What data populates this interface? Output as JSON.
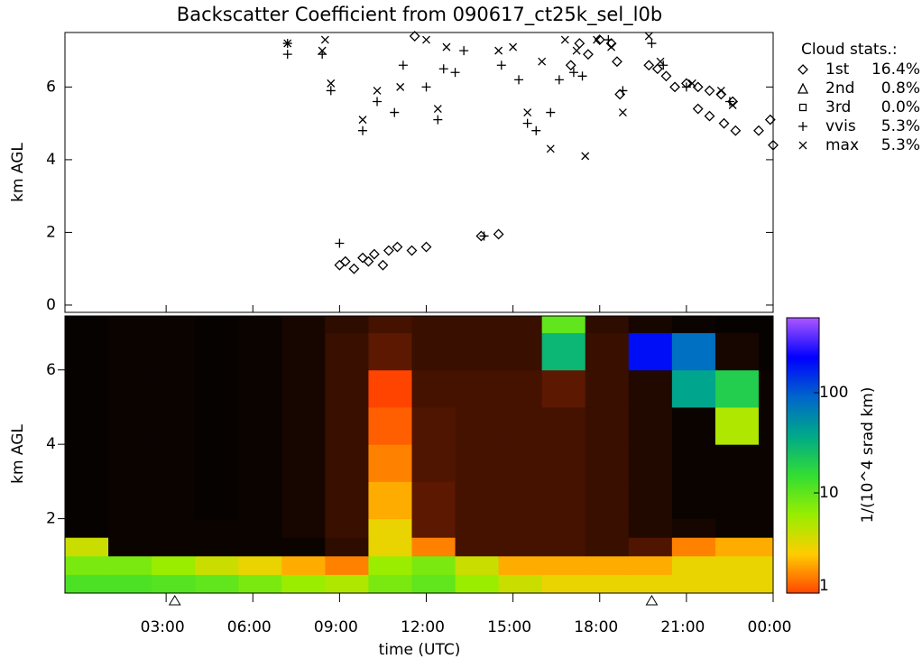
{
  "chart_data": [
    {
      "type": "scatter",
      "title": "Backscatter Coefficient from 090617_ct25k_sel_l0b",
      "ylabel": "km AGL",
      "xlim": [
        -0.5,
        24
      ],
      "ylim": [
        -0.2,
        7.5
      ],
      "yticks": [
        0,
        2,
        4,
        6
      ],
      "legend_title": "Cloud stats.:",
      "legend": "right",
      "series": [
        {
          "name": "1st",
          "marker": "diamond",
          "share_label": "16.4%",
          "x": [
            9.0,
            9.2,
            9.5,
            9.8,
            10.0,
            10.2,
            10.5,
            10.7,
            11.0,
            11.5,
            12.0,
            11.6,
            13.9,
            14.5,
            17.0,
            17.3,
            17.6,
            18.0,
            18.4,
            18.6,
            18.7,
            19.7,
            20.0,
            20.3,
            20.6,
            21.0,
            21.4,
            21.8,
            22.2,
            22.6,
            21.4,
            21.8,
            22.3,
            22.7,
            23.5,
            23.9,
            24.0
          ],
          "y": [
            1.1,
            1.2,
            1.0,
            1.3,
            1.2,
            1.4,
            1.1,
            1.5,
            1.6,
            1.5,
            1.6,
            7.4,
            1.9,
            1.95,
            6.6,
            7.2,
            6.9,
            7.3,
            7.2,
            6.7,
            5.8,
            6.6,
            6.5,
            6.3,
            6.0,
            6.1,
            6.0,
            5.9,
            5.8,
            5.6,
            5.4,
            5.2,
            5.0,
            4.8,
            4.8,
            5.1,
            4.4
          ]
        },
        {
          "name": "2nd",
          "marker": "triangle",
          "share_label": "0.8%",
          "x": [],
          "y": []
        },
        {
          "name": "3rd",
          "marker": "square",
          "share_label": "0.0%",
          "x": [],
          "y": []
        },
        {
          "name": "vvis",
          "marker": "plus",
          "share_label": "5.3%",
          "x": [
            7.2,
            7.2,
            8.4,
            8.7,
            9.0,
            9.8,
            10.3,
            10.9,
            11.2,
            12.0,
            12.4,
            12.6,
            13.0,
            13.3,
            14.0,
            14.6,
            15.2,
            15.5,
            15.8,
            16.3,
            16.6,
            17.1,
            17.4,
            18.3,
            18.8,
            19.8,
            20.2,
            21.0,
            22.5
          ],
          "y": [
            6.9,
            7.2,
            6.9,
            5.9,
            1.7,
            4.8,
            5.6,
            5.3,
            6.6,
            6.0,
            5.1,
            6.5,
            6.4,
            7.0,
            1.9,
            6.6,
            6.2,
            5.0,
            4.8,
            5.3,
            6.2,
            6.4,
            6.3,
            7.3,
            5.9,
            7.2,
            6.6,
            6.0,
            5.6
          ]
        },
        {
          "name": "max",
          "marker": "cross",
          "share_label": "5.3%",
          "x": [
            7.2,
            8.4,
            8.5,
            8.7,
            9.8,
            10.3,
            11.1,
            12.0,
            12.4,
            12.7,
            14.5,
            15.0,
            15.5,
            16.0,
            16.3,
            16.8,
            17.2,
            17.5,
            17.9,
            18.4,
            18.8,
            19.7,
            20.1,
            21.2,
            22.2,
            22.6
          ],
          "y": [
            7.2,
            7.0,
            7.3,
            6.1,
            5.1,
            5.9,
            6.0,
            7.3,
            5.4,
            7.1,
            7.0,
            7.1,
            5.3,
            6.7,
            4.3,
            7.3,
            7.0,
            4.1,
            7.3,
            7.1,
            5.3,
            7.4,
            6.7,
            6.1,
            5.9,
            5.5
          ]
        }
      ]
    },
    {
      "type": "heatmap",
      "ylabel": "km AGL",
      "xlabel": "time (UTC)",
      "xlim": [
        -0.5,
        24
      ],
      "ylim": [
        0,
        7.45
      ],
      "xticks": [
        {
          "value": 3,
          "label": "03:00"
        },
        {
          "value": 6,
          "label": "06:00"
        },
        {
          "value": 9,
          "label": "09:00"
        },
        {
          "value": 12,
          "label": "12:00"
        },
        {
          "value": 15,
          "label": "15:00"
        },
        {
          "value": 18,
          "label": "18:00"
        },
        {
          "value": 21,
          "label": "21:00"
        },
        {
          "value": 24,
          "label": "00:00"
        }
      ],
      "yticks": [
        2,
        4,
        6
      ],
      "markers": [
        3.3,
        19.8
      ],
      "x_edges": [
        -0.5,
        1,
        2.5,
        4,
        5.5,
        7,
        8.5,
        10,
        11.5,
        13,
        14.5,
        16,
        17.5,
        19,
        20.5,
        22,
        23.5,
        24
      ],
      "y_edges": [
        0,
        0.5,
        1,
        1.5,
        2,
        3,
        4,
        5,
        6,
        7,
        7.45
      ],
      "z": [
        [
          12,
          12,
          11,
          10,
          8,
          6,
          5,
          8,
          10,
          6,
          4,
          3,
          3,
          3,
          3,
          3,
          3
        ],
        [
          8,
          8,
          6,
          4,
          3,
          2,
          1.5,
          6,
          8,
          4,
          2,
          2,
          2,
          2,
          3,
          3,
          3
        ],
        [
          4,
          0.1,
          0.1,
          0.1,
          0.1,
          0.1,
          0.4,
          3,
          1.5,
          0.6,
          0.6,
          0.6,
          0.5,
          0.7,
          1.5,
          2,
          2
        ],
        [
          0.05,
          0.1,
          0.1,
          0.1,
          0.1,
          0.2,
          0.5,
          3,
          0.8,
          0.6,
          0.6,
          0.6,
          0.5,
          0.3,
          0.2,
          0.1,
          0.1
        ],
        [
          0.05,
          0.1,
          0.1,
          0.05,
          0.1,
          0.2,
          0.5,
          2,
          0.8,
          0.6,
          0.6,
          0.6,
          0.5,
          0.3,
          0.1,
          0.1,
          0.1
        ],
        [
          0.05,
          0.1,
          0.1,
          0.05,
          0.1,
          0.2,
          0.5,
          1.5,
          0.7,
          0.6,
          0.6,
          0.6,
          0.5,
          0.3,
          0.1,
          0.1,
          0.1
        ],
        [
          0.05,
          0.1,
          0.1,
          0.05,
          0.1,
          0.2,
          0.5,
          1.2,
          0.7,
          0.6,
          0.6,
          0.6,
          0.5,
          0.3,
          0.1,
          5,
          0.1
        ],
        [
          0.05,
          0.1,
          0.1,
          0.05,
          0.1,
          0.2,
          0.5,
          1,
          0.6,
          0.6,
          0.6,
          0.8,
          0.5,
          0.3,
          40,
          20,
          0.1
        ],
        [
          0.05,
          0.1,
          0.1,
          0.05,
          0.1,
          0.2,
          0.5,
          0.8,
          0.5,
          0.5,
          0.5,
          30,
          0.5,
          200,
          80,
          0.2,
          0.05
        ],
        [
          0.05,
          0.1,
          0.1,
          0.05,
          0.1,
          0.2,
          0.4,
          0.6,
          0.5,
          0.5,
          0.5,
          10,
          0.4,
          0.2,
          0.1,
          0.05,
          0.05
        ]
      ],
      "colorbar_label": "1/(10^4 srad km)",
      "zlim": [
        1,
        560
      ],
      "zscale": "log",
      "zticks": [
        1,
        10,
        100
      ],
      "colormap": [
        "#ff4400",
        "#ffcc00",
        "#99ee00",
        "#33dd33",
        "#00aa88",
        "#0066cc",
        "#0000ff",
        "#aa55ff"
      ]
    }
  ]
}
